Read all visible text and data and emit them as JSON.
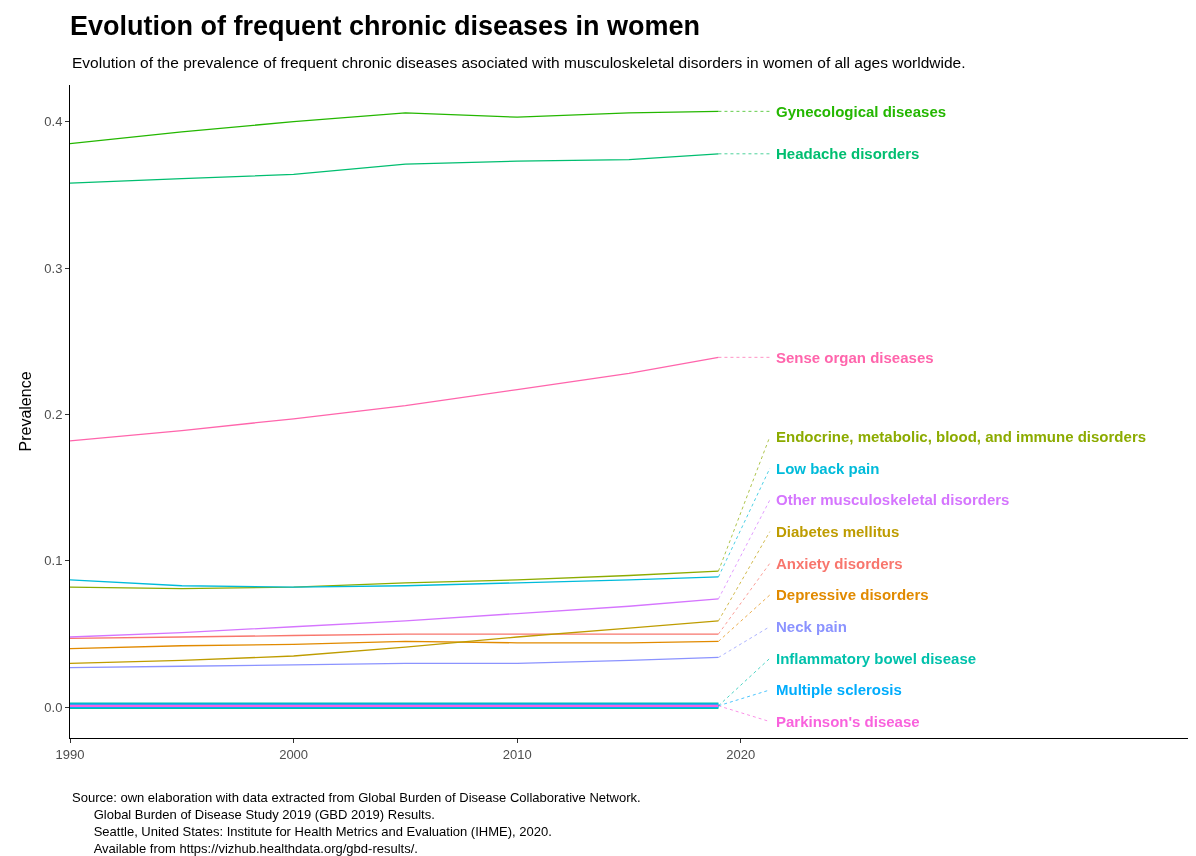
{
  "chart_data": {
    "type": "line",
    "title": "Evolution of frequent chronic diseases in women",
    "subtitle": "Evolution of the prevalence of frequent chronic diseases asociated with musculoskeletal disorders in women of all ages worldwide.",
    "ylabel": "Prevalence",
    "x": [
      1990,
      1995,
      2000,
      2005,
      2010,
      2015,
      2019
    ],
    "xlim": [
      1990,
      2040
    ],
    "xticks": [
      1990,
      2000,
      2010,
      2020
    ],
    "ylim": [
      -0.021,
      0.425
    ],
    "yticks": [
      {
        "value": 0,
        "label": "0.0"
      },
      {
        "value": 0.1,
        "label": "0.1"
      },
      {
        "value": 0.2,
        "label": "0.2"
      },
      {
        "value": 0.3,
        "label": "0.3"
      },
      {
        "value": 0.4,
        "label": "0.4"
      }
    ],
    "grid": false,
    "legend": "right",
    "line_style": "solid",
    "marker": "none",
    "series": [
      {
        "name": "Anxiety disorders",
        "color": "#f8766d",
        "values": [
          0.047,
          0.048,
          0.049,
          0.05,
          0.05,
          0.05,
          0.05
        ]
      },
      {
        "name": "Depressive disorders",
        "color": "#e18a00",
        "values": [
          0.04,
          0.042,
          0.043,
          0.045,
          0.044,
          0.044,
          0.045
        ]
      },
      {
        "name": "Diabetes mellitus",
        "color": "#be9c00",
        "values": [
          0.03,
          0.032,
          0.035,
          0.041,
          0.048,
          0.054,
          0.059
        ]
      },
      {
        "name": "Endocrine, metabolic, blood, and immune disorders",
        "color": "#8cab00",
        "values": [
          0.082,
          0.081,
          0.082,
          0.085,
          0.087,
          0.09,
          0.093
        ]
      },
      {
        "name": "Gynecological diseases",
        "color": "#24b700",
        "values": [
          0.385,
          0.393,
          0.4,
          0.406,
          0.403,
          0.406,
          0.407
        ]
      },
      {
        "name": "Headache disorders",
        "color": "#00be70",
        "values": [
          0.358,
          0.361,
          0.364,
          0.371,
          0.373,
          0.374,
          0.378
        ]
      },
      {
        "name": "Inflammatory bowel disease",
        "color": "#00c1ab",
        "values": [
          0.001,
          0.001,
          0.001,
          0.001,
          0.001,
          0.001,
          0.001
        ]
      },
      {
        "name": "Low back pain",
        "color": "#00bbda",
        "values": [
          0.087,
          0.083,
          0.082,
          0.083,
          0.085,
          0.087,
          0.089
        ]
      },
      {
        "name": "Multiple sclerosis",
        "color": "#00acfc",
        "values": [
          0.001,
          0.001,
          0.001,
          0.001,
          0.001,
          0.001,
          0.001
        ]
      },
      {
        "name": "Neck pain",
        "color": "#8b93ff",
        "values": [
          0.027,
          0.028,
          0.029,
          0.03,
          0.03,
          0.032,
          0.034
        ]
      },
      {
        "name": "Other musculoskeletal disorders",
        "color": "#d575fe",
        "values": [
          0.048,
          0.051,
          0.055,
          0.059,
          0.064,
          0.069,
          0.074
        ]
      },
      {
        "name": "Parkinson's disease",
        "color": "#f962dd",
        "values": [
          0.001,
          0.001,
          0.001,
          0.001,
          0.001,
          0.001,
          0.001
        ]
      },
      {
        "name": "Sense organ diseases",
        "color": "#ff65ac",
        "values": [
          0.182,
          0.189,
          0.197,
          0.206,
          0.217,
          0.228,
          0.239
        ]
      }
    ],
    "annotations": [
      "Source: own elaboration with data extracted from Global Burden of Disease Collaborative Network.\n      Global Burden of Disease Study 2019 (GBD 2019) Results.\n      Seattle, United States: Institute for Health Metrics and Evaluation (IHME), 2020.\n      Available from https://vizhub.healthdata.org/gbd-results/."
    ]
  }
}
